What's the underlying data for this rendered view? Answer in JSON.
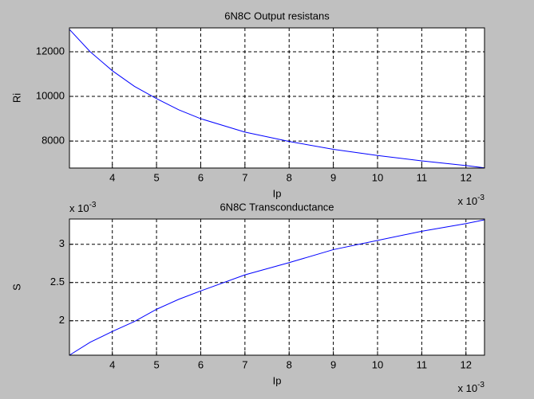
{
  "chart_data": [
    {
      "type": "line",
      "title": "6N8C Output resistans",
      "xlabel": "Ip",
      "ylabel": "Ri",
      "x": [
        3.03,
        3.5,
        4,
        4.5,
        5,
        5.5,
        6,
        7,
        8,
        9,
        10,
        11,
        12,
        12.42
      ],
      "values": [
        13000,
        12000,
        11150,
        10450,
        9900,
        9400,
        9000,
        8400,
        7980,
        7630,
        7350,
        7110,
        6900,
        6800
      ],
      "color": "#0000ff",
      "xlim": [
        3.03,
        12.42
      ],
      "ylim": [
        6790,
        13070
      ],
      "xticks": [
        4,
        5,
        6,
        7,
        8,
        9,
        10,
        11,
        12
      ],
      "yticks": [
        8000,
        10000,
        12000
      ],
      "grid": true,
      "x_multiplier": {
        "base": "x 10",
        "exponent": "-3"
      }
    },
    {
      "type": "line",
      "title": "6N8C Transconductance",
      "xlabel": "Ip",
      "ylabel": "S",
      "x": [
        3.03,
        3.5,
        4,
        4.5,
        5,
        5.5,
        6,
        7,
        8,
        9,
        10,
        11,
        12,
        12.42
      ],
      "values": [
        1.55,
        1.72,
        1.86,
        1.99,
        2.15,
        2.28,
        2.39,
        2.6,
        2.76,
        2.93,
        3.05,
        3.17,
        3.27,
        3.32
      ],
      "color": "#0000ff",
      "xlim": [
        3.03,
        12.42
      ],
      "ylim": [
        1.55,
        3.33
      ],
      "xticks": [
        4,
        5,
        6,
        7,
        8,
        9,
        10,
        11,
        12
      ],
      "yticks": [
        2,
        2.5,
        3
      ],
      "grid": true,
      "x_multiplier": {
        "base": "x 10",
        "exponent": "-3"
      },
      "y_multiplier": {
        "base": "x 10",
        "exponent": "-3"
      }
    }
  ]
}
